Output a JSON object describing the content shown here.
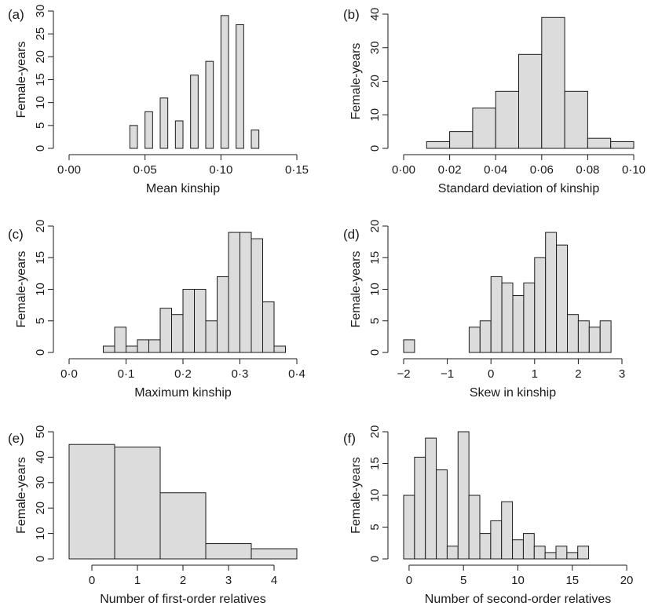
{
  "chart_data": [
    {
      "panel_label": "(a)",
      "type": "bar",
      "title": "",
      "xlabel": "Mean kinship",
      "ylabel": "Female-years",
      "bin_edges": [
        0.0,
        0.005,
        0.01,
        0.015,
        0.02,
        0.025,
        0.03,
        0.035,
        0.04,
        0.045,
        0.05,
        0.055,
        0.06,
        0.065,
        0.07,
        0.075,
        0.08,
        0.085,
        0.09,
        0.095,
        0.1,
        0.105,
        0.11,
        0.115,
        0.12,
        0.125,
        0.13,
        0.135,
        0.14,
        0.145,
        0.15
      ],
      "counts": [
        0,
        0,
        0,
        0,
        0,
        0,
        0,
        0,
        5,
        0,
        8,
        0,
        11,
        0,
        6,
        0,
        16,
        0,
        19,
        0,
        29,
        0,
        27,
        0,
        4,
        0,
        0,
        0,
        0,
        0
      ],
      "xlim": [
        0,
        0.15
      ],
      "ylim": [
        0,
        30
      ],
      "xticks": [
        0,
        0.05,
        0.1,
        0.15
      ],
      "xtick_labels": [
        "0·00",
        "0·05",
        "0·10",
        "0·15"
      ],
      "yticks": [
        0,
        5,
        10,
        15,
        20,
        25,
        30
      ],
      "ytick_labels": [
        "0",
        "5",
        "10",
        "15",
        "20",
        "25",
        "30"
      ]
    },
    {
      "panel_label": "(b)",
      "type": "bar",
      "title": "",
      "xlabel": "Standard deviation of kinship",
      "ylabel": "Female-years",
      "bin_edges": [
        0.0,
        0.01,
        0.02,
        0.03,
        0.04,
        0.05,
        0.06,
        0.07,
        0.08,
        0.09,
        0.1
      ],
      "counts": [
        0,
        2,
        5,
        12,
        17,
        28,
        39,
        17,
        3,
        2
      ],
      "xlim": [
        0,
        0.1
      ],
      "ylim": [
        0,
        40
      ],
      "xticks": [
        0,
        0.02,
        0.04,
        0.06,
        0.08,
        0.1
      ],
      "xtick_labels": [
        "0·00",
        "0·02",
        "0·04",
        "0·06",
        "0·08",
        "0·10"
      ],
      "yticks": [
        0,
        10,
        20,
        30,
        40
      ],
      "ytick_labels": [
        "0",
        "10",
        "20",
        "30",
        "40"
      ]
    },
    {
      "panel_label": "(c)",
      "type": "bar",
      "title": "",
      "xlabel": "Maximum kinship",
      "ylabel": "Female-years",
      "bin_edges": [
        0.0,
        0.02,
        0.04,
        0.06,
        0.08,
        0.1,
        0.12,
        0.14,
        0.16,
        0.18,
        0.2,
        0.22,
        0.24,
        0.26,
        0.28,
        0.3,
        0.32,
        0.34,
        0.36,
        0.38,
        0.4
      ],
      "counts": [
        0,
        0,
        0,
        1,
        4,
        1,
        2,
        2,
        7,
        6,
        10,
        10,
        5,
        12,
        19,
        19,
        18,
        8,
        1,
        0
      ],
      "xlim": [
        0,
        0.4
      ],
      "ylim": [
        0,
        20
      ],
      "xticks": [
        0,
        0.1,
        0.2,
        0.3,
        0.4
      ],
      "xtick_labels": [
        "0·0",
        "0·1",
        "0·2",
        "0·3",
        "0·4"
      ],
      "yticks": [
        0,
        5,
        10,
        15,
        20
      ],
      "ytick_labels": [
        "0",
        "5",
        "10",
        "15",
        "20"
      ]
    },
    {
      "panel_label": "(d)",
      "type": "bar",
      "title": "",
      "xlabel": "Skew in kinship",
      "ylabel": "Female-years",
      "bin_edges": [
        -2.0,
        -1.75,
        -1.5,
        -1.25,
        -1.0,
        -0.75,
        -0.5,
        -0.25,
        0.0,
        0.25,
        0.5,
        0.75,
        1.0,
        1.25,
        1.5,
        1.75,
        2.0,
        2.25,
        2.5,
        2.75
      ],
      "counts": [
        2,
        0,
        0,
        0,
        0,
        0,
        4,
        5,
        12,
        11,
        9,
        11,
        15,
        19,
        17,
        6,
        5,
        4,
        5
      ],
      "xlim": [
        -2,
        3
      ],
      "ylim": [
        0,
        20
      ],
      "xticks": [
        -2,
        -1,
        0,
        1,
        2,
        3
      ],
      "xtick_labels": [
        "−2",
        "−1",
        "0",
        "1",
        "2",
        "3"
      ],
      "yticks": [
        0,
        5,
        10,
        15,
        20
      ],
      "ytick_labels": [
        "0",
        "5",
        "10",
        "15",
        "20"
      ]
    },
    {
      "panel_label": "(e)",
      "type": "bar",
      "title": "",
      "xlabel": "Number of first-order relatives",
      "ylabel": "Female-years",
      "bin_edges": [
        -0.5,
        0.5,
        1.5,
        2.5,
        3.5,
        4.5
      ],
      "counts": [
        45,
        44,
        26,
        6,
        4
      ],
      "xlim": [
        -0.5,
        4.5
      ],
      "ylim": [
        0,
        50
      ],
      "xticks": [
        0,
        1,
        2,
        3,
        4
      ],
      "xtick_labels": [
        "0",
        "1",
        "2",
        "3",
        "4"
      ],
      "yticks": [
        0,
        10,
        20,
        30,
        40,
        50
      ],
      "ytick_labels": [
        "0",
        "10",
        "20",
        "30",
        "40",
        "50"
      ]
    },
    {
      "panel_label": "(f)",
      "type": "bar",
      "title": "",
      "xlabel": "Number of second-order relatives",
      "ylabel": "Female-years",
      "bin_edges": [
        -0.5,
        0.5,
        1.5,
        2.5,
        3.5,
        4.5,
        5.5,
        6.5,
        7.5,
        8.5,
        9.5,
        10.5,
        11.5,
        12.5,
        13.5,
        14.5,
        15.5,
        16.5,
        17.5,
        18.5,
        19.5,
        20.5
      ],
      "counts": [
        10,
        16,
        19,
        14,
        2,
        20,
        10,
        4,
        6,
        9,
        3,
        4,
        2,
        1,
        2,
        1,
        2,
        0,
        0,
        0,
        0
      ],
      "xlim": [
        -0.5,
        20.5
      ],
      "ylim": [
        0,
        20
      ],
      "xticks": [
        0,
        5,
        10,
        15,
        20
      ],
      "xtick_labels": [
        "0",
        "5",
        "10",
        "15",
        "20"
      ],
      "yticks": [
        0,
        5,
        10,
        15,
        20
      ],
      "ytick_labels": [
        "0",
        "5",
        "10",
        "15",
        "20"
      ]
    }
  ]
}
